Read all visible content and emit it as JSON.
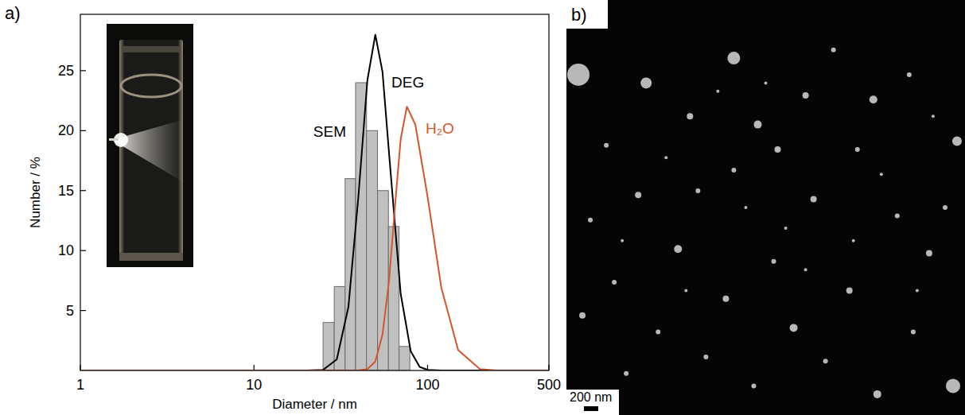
{
  "chart_data": {
    "type": "histogram",
    "x_label": "Diameter / nm",
    "y_label": "Number / %",
    "log": "x",
    "xlim": [
      1,
      500
    ],
    "xticks": [
      1,
      10,
      100,
      500
    ],
    "ylim": [
      0,
      29.7
    ],
    "yticks": [
      5,
      10,
      15,
      20,
      25
    ],
    "series": [
      {
        "name": "SEM",
        "type": "histogram",
        "color": "#c0c0c0",
        "bins": [
          25,
          29,
          33.5,
          38.5,
          44.5,
          51.5,
          59.5,
          68.5,
          79
        ],
        "values": [
          4,
          7,
          16,
          24,
          20,
          15,
          12,
          2
        ]
      },
      {
        "name": "DEG",
        "type": "line",
        "color": "#000000",
        "x": [
          1,
          20,
          25,
          30,
          35,
          40,
          45,
          50,
          55,
          60,
          70,
          80,
          90,
          100,
          120,
          500
        ],
        "values": [
          0,
          0,
          0.05,
          0.93,
          5.3,
          14.6,
          24.2,
          28,
          24.9,
          18.1,
          6.4,
          1.6,
          0.3,
          0.05,
          0,
          0
        ]
      },
      {
        "name": "H₂O",
        "type": "line",
        "color": "#d4562a",
        "x": [
          1,
          40,
          45,
          50,
          55,
          60,
          65,
          70,
          76,
          85,
          100,
          120,
          150,
          200,
          250,
          500
        ],
        "values": [
          0,
          0,
          0.11,
          0.75,
          3,
          7.5,
          13.8,
          19.3,
          22,
          20.5,
          14.5,
          6.9,
          1.7,
          0.12,
          0,
          0
        ]
      }
    ]
  },
  "panel_labels": [
    "a)",
    "b)"
  ],
  "sem_image": {
    "scale_bar": "200 nm"
  }
}
